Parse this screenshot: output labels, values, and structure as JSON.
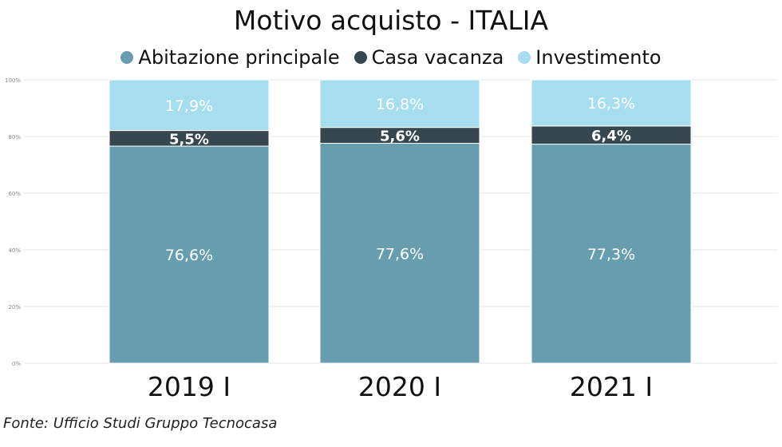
{
  "chart_data": {
    "type": "bar",
    "stacked": true,
    "title": "Motivo acquisto - ITALIA",
    "categories": [
      "2019 I",
      "2020 I",
      "2021 I"
    ],
    "series": [
      {
        "name": "Abitazione principale",
        "values": [
          76.6,
          77.6,
          77.3
        ],
        "labels": [
          "76,6%",
          "77,6%",
          "77,3%"
        ],
        "color": "#669eb0",
        "label_color": "#ffffff"
      },
      {
        "name": "Casa vacanza",
        "values": [
          5.5,
          5.6,
          6.4
        ],
        "labels": [
          "5,5%",
          "5,6%",
          "6,4%"
        ],
        "color": "#37474f",
        "label_color": "#ffffff"
      },
      {
        "name": "Investimento",
        "values": [
          17.9,
          16.8,
          16.3
        ],
        "labels": [
          "17,9%",
          "16,8%",
          "16,3%"
        ],
        "color": "#a6def0",
        "label_color": "#ffffff"
      }
    ],
    "yticks": [
      "0%",
      "20%",
      "40%",
      "60%",
      "80%",
      "100%"
    ],
    "ylim": [
      0,
      100
    ],
    "grid": true,
    "legend_position": "top"
  },
  "source": "Fonte: Ufficio Studi Gruppo Tecnocasa"
}
